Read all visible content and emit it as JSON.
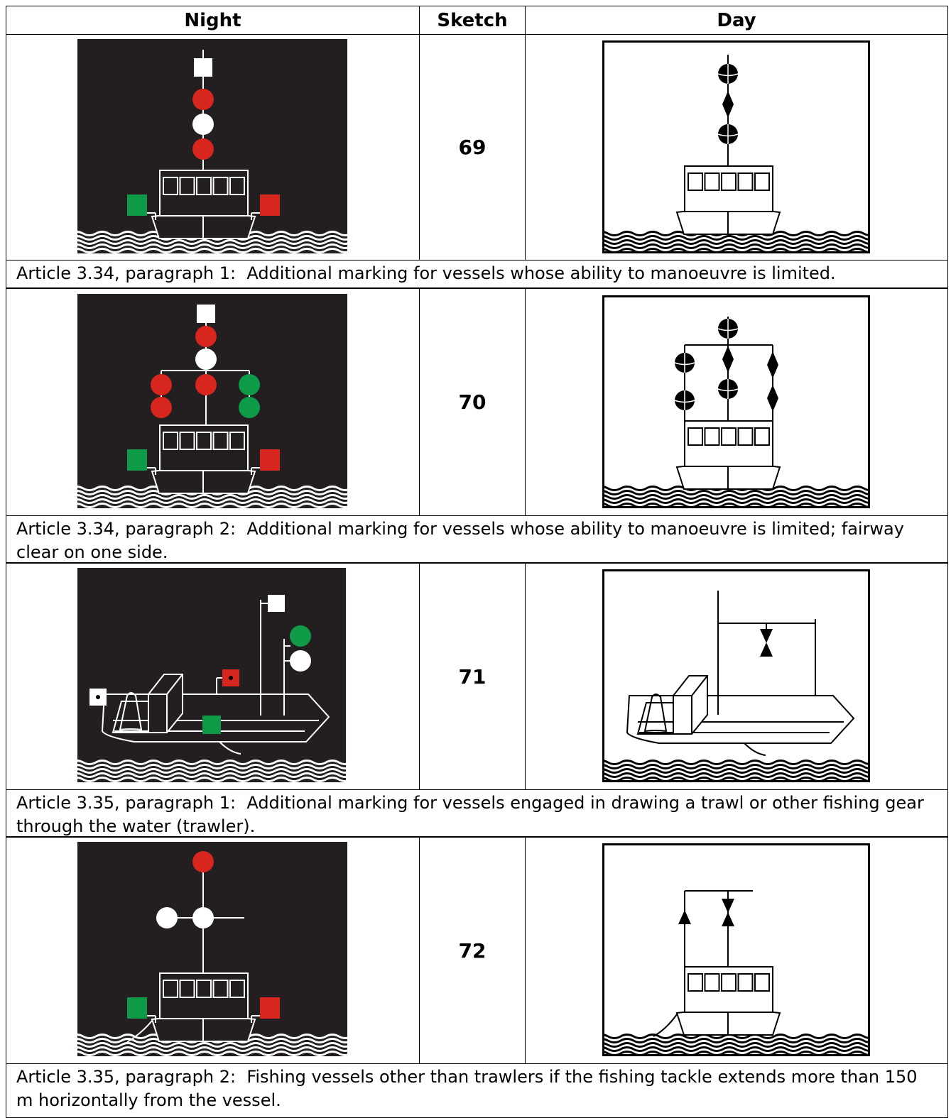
{
  "table": {
    "header": [
      "Night",
      "Sketch",
      "Day"
    ],
    "rows": [
      {
        "sketch": 69,
        "caption": "Article 3.34, paragraph 1:  Additional marking for vessels whose ability to manoeuvre is limited."
      },
      {
        "sketch": 70,
        "caption": "Article 3.34, paragraph 2:  Additional marking for vessels whose ability to manoeuvre is limited; fairway clear on one side."
      },
      {
        "sketch": 71,
        "caption": "Article 3.35, paragraph 1:  Additional marking for vessels engaged in drawing a trawl or other fishing gear through the water (trawler)."
      },
      {
        "sketch": 72,
        "caption": "Article 3.35, paragraph 2:  Fishing vessels other than trawlers if the fishing tackle extends more than 150 m horizontally from the vessel."
      }
    ]
  }
}
